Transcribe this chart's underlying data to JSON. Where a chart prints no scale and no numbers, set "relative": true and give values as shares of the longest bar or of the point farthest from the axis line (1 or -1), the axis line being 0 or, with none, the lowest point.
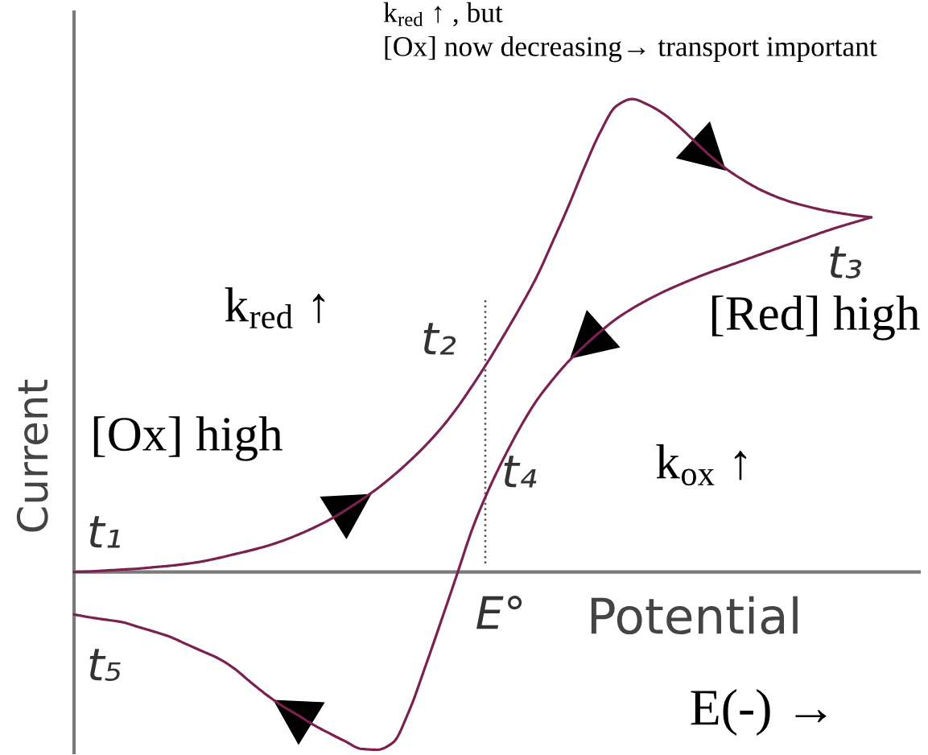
{
  "chart_data": {
    "type": "line",
    "relative": true,
    "xlabel": "Potential",
    "ylabel": "Current",
    "line_style": "solid",
    "categories": [
      null,
      null,
      null,
      null,
      null,
      null,
      null,
      null,
      null,
      null,
      null,
      null,
      null,
      null,
      null,
      null,
      null,
      null,
      null,
      null,
      null,
      null,
      null,
      null,
      null,
      null,
      null,
      null,
      null,
      null,
      null,
      null,
      null,
      null,
      null,
      null,
      null,
      null,
      null,
      null,
      null,
      null,
      null,
      null,
      null,
      null,
      null,
      null,
      null,
      null,
      null
    ],
    "series": [
      {
        "color": "#7b2152",
        "values": [
          0,
          0.001,
          0.003,
          0.005,
          0.007,
          0.01,
          0.013,
          0.017,
          0.022,
          0.029,
          0.037,
          0.045,
          0.054,
          0.065,
          0.078,
          0.093,
          0.11,
          0.13,
          0.152,
          0.176,
          0.203,
          0.233,
          0.266,
          0.303,
          0.346,
          0.395,
          0.447,
          0.503,
          0.561,
          0.623,
          0.697,
          0.773,
          0.855,
          0.93,
          0.985,
          1.0,
          0.988,
          0.968,
          0.94,
          0.908,
          0.877,
          0.85,
          0.828,
          0.809,
          0.794,
          0.782,
          0.773,
          0.765,
          0.759,
          0.754,
          0.75
        ]
      },
      {
        "color": "#7b2152",
        "values": [
          -0.09,
          -0.096,
          -0.101,
          -0.106,
          -0.116,
          -0.126,
          -0.137,
          -0.152,
          -0.167,
          -0.182,
          -0.203,
          -0.231,
          -0.258,
          -0.282,
          -0.302,
          -0.323,
          -0.341,
          -0.358,
          -0.374,
          -0.376,
          -0.361,
          -0.295,
          -0.203,
          -0.106,
          -0.007,
          0.093,
          0.174,
          0.244,
          0.307,
          0.362,
          0.406,
          0.445,
          0.478,
          0.508,
          0.535,
          0.557,
          0.576,
          0.593,
          0.608,
          0.622,
          0.635,
          0.647,
          0.659,
          0.671,
          0.683,
          0.695,
          0.707,
          0.719,
          0.73,
          0.74,
          0.75
        ]
      }
    ],
    "annotations": [
      "t₁",
      "t₂",
      "t₃",
      "t₄",
      "t₅",
      "k$_{red}$ ↑",
      "k$_{ox}$ ↑",
      "[Ox] high",
      "[Red] high",
      "k$_{red}$ ↑ , but\n[Ox] now decreasing→ transport important",
      "E(-) →",
      "E°"
    ]
  }
}
